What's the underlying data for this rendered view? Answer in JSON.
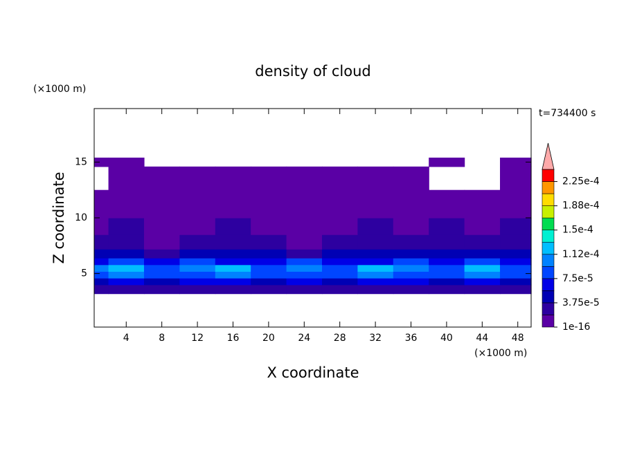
{
  "chart_data": {
    "type": "contour",
    "title": "density of cloud",
    "time_label": "t=734400 s",
    "xlabel": "X coordinate",
    "ylabel": "Z coordinate",
    "x_unit": "(×1000 m)",
    "y_unit": "(×1000 m)",
    "xlim": [
      0.4,
      49.5
    ],
    "ylim": [
      0.2,
      19.8
    ],
    "xticks": [
      4,
      8,
      12,
      16,
      20,
      24,
      28,
      32,
      36,
      40,
      44,
      48
    ],
    "yticks": [
      5,
      10,
      15
    ],
    "clevels": [
      1e-16,
      1.875e-05,
      3.75e-05,
      5.625e-05,
      7.5e-05,
      9.375e-05,
      0.0001125,
      0.00013125,
      0.00015,
      0.00016875,
      0.0001875,
      0.00020625,
      0.000225
    ],
    "colors": [
      "#5a00a5",
      "#2d00a0",
      "#0000b4",
      "#0000e6",
      "#0046ff",
      "#0082ff",
      "#00beff",
      "#00f0d2",
      "#00dc50",
      "#c8f000",
      "#ffdc00",
      "#ff9600",
      "#ff0000"
    ],
    "extend_color": "#ffaaaa",
    "colorbar_ticks": [
      1e-16,
      {
        "value": 3.75e-05,
        "label": "3.75e-5"
      },
      {
        "value": 7.5e-05,
        "label": "7.5e-5"
      },
      {
        "value": 0.0001125,
        "label": "1.12e-4"
      },
      {
        "value": 0.00015,
        "label": "1.5e-4"
      },
      {
        "value": 0.0001875,
        "label": "1.88e-4"
      },
      {
        "value": 0.000225,
        "label": "2.25e-4"
      }
    ],
    "field": {
      "x_edges": [
        0.4,
        2,
        6,
        10,
        14,
        18,
        22,
        26,
        30,
        34,
        38,
        42,
        46,
        49.5
      ],
      "z_edges": [
        3.2,
        4.0,
        4.6,
        5.2,
        5.8,
        6.4,
        7.2,
        8.5,
        10,
        12.5,
        14.6,
        15.4
      ],
      "values": [
        [
          2.5e-05,
          2.5e-05,
          2.5e-05,
          2.5e-05,
          2.5e-05,
          2.5e-05,
          2.5e-05,
          2.5e-05,
          2.5e-05,
          2.5e-05,
          2.5e-05,
          2.5e-05,
          2.5e-05
        ],
        [
          4.5e-05,
          6.5e-05,
          4.5e-05,
          6.5e-05,
          6.5e-05,
          4.5e-05,
          6.5e-05,
          4.5e-05,
          6.5e-05,
          6.5e-05,
          4.5e-05,
          6.5e-05,
          4.5e-05
        ],
        [
          8.5e-05,
          0.0001,
          8.5e-05,
          8.5e-05,
          0.0001,
          8.5e-05,
          8.5e-05,
          8.5e-05,
          0.0001,
          8.5e-05,
          8.5e-05,
          0.0001,
          8.5e-05
        ],
        [
          0.0001,
          0.00012,
          8.5e-05,
          0.0001,
          0.00012,
          8.5e-05,
          0.0001,
          8.5e-05,
          0.00012,
          0.0001,
          8.5e-05,
          0.00012,
          8.5e-05
        ],
        [
          6.5e-05,
          8.5e-05,
          6.5e-05,
          8.5e-05,
          6.5e-05,
          6.5e-05,
          8.5e-05,
          6.5e-05,
          6.5e-05,
          8.5e-05,
          6.5e-05,
          8.5e-05,
          6.5e-05
        ],
        [
          4.5e-05,
          4.5e-05,
          2.5e-05,
          4.5e-05,
          4.5e-05,
          4.5e-05,
          2.5e-05,
          4.5e-05,
          4.5e-05,
          4.5e-05,
          4.5e-05,
          4.5e-05,
          4.5e-05
        ],
        [
          2.5e-05,
          2.5e-05,
          1e-05,
          2.5e-05,
          2.5e-05,
          2.5e-05,
          1e-05,
          2.5e-05,
          2.5e-05,
          2.5e-05,
          2.5e-05,
          2.5e-05,
          2.5e-05
        ],
        [
          1e-05,
          2.5e-05,
          1e-05,
          1e-05,
          2.5e-05,
          1e-05,
          1e-05,
          1e-05,
          2.5e-05,
          1e-05,
          2.5e-05,
          1e-05,
          2.5e-05
        ],
        [
          1e-05,
          1e-05,
          1e-05,
          1e-05,
          1e-05,
          1e-05,
          1e-05,
          1e-05,
          1e-05,
          1e-05,
          1e-05,
          1e-05,
          1e-05
        ],
        [
          null,
          1e-05,
          1e-05,
          1e-05,
          1e-05,
          1e-05,
          1e-05,
          1e-05,
          1e-05,
          1e-05,
          null,
          null,
          1e-05
        ],
        [
          1e-05,
          1e-05,
          null,
          null,
          null,
          null,
          null,
          null,
          null,
          null,
          1e-05,
          null,
          1e-05
        ]
      ]
    }
  }
}
